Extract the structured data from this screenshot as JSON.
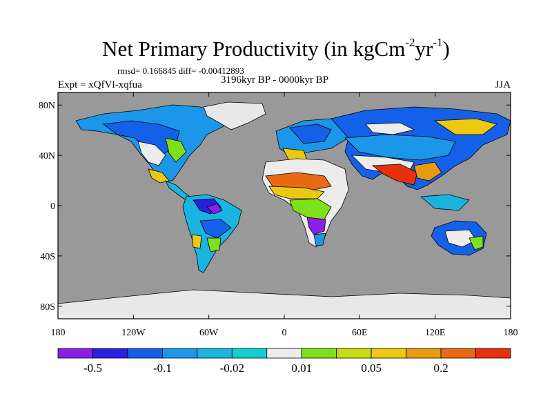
{
  "title": {
    "main": "Net Primary Productivity (in kgCm",
    "exp1": "-2",
    "mid": "yr",
    "exp2": "-1",
    "close": ")"
  },
  "stats_line": "rmsd= 0.166845 diff= -0.00412893",
  "experiment": "Expt = xQfVl-xqfua",
  "period": "3196kyr BP - 0000kyr BP",
  "season": "JJA",
  "axes": {
    "lat_labels": [
      "80N",
      "40N",
      "0",
      "40S",
      "80S"
    ],
    "lon_labels": [
      "180",
      "120W",
      "60W",
      "0",
      "60E",
      "120E",
      "180"
    ]
  },
  "colorbar": {
    "colors": [
      "#8a1fe6",
      "#2a1fe0",
      "#1560e8",
      "#1c96e8",
      "#1ab4e0",
      "#12d0d0",
      "#ececec",
      "#7ee01a",
      "#c8dc10",
      "#ecc810",
      "#e89a10",
      "#e86a12",
      "#e8300c"
    ],
    "labels": [
      "-0.5",
      "-0.1",
      "-0.02",
      "0.01",
      "0.05",
      "0.2"
    ]
  },
  "palette": {
    "ocean": "#999999",
    "ice": "#e8e8e8"
  }
}
